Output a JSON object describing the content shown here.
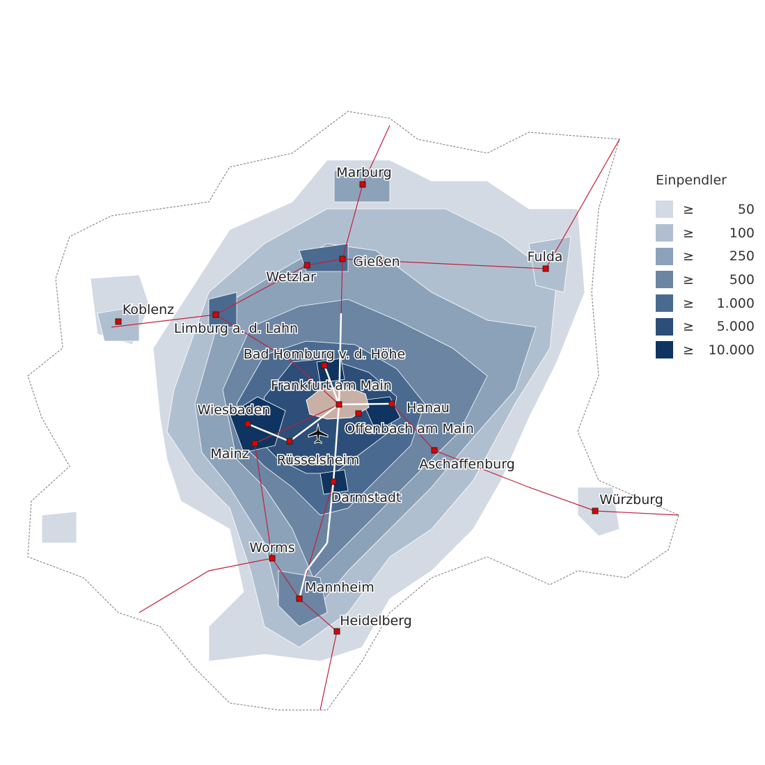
{
  "legend": {
    "title": "Einpendler",
    "symbol": "≥",
    "classes": [
      {
        "label": "50",
        "color": "#d3dae3"
      },
      {
        "label": "100",
        "color": "#b0bfd0"
      },
      {
        "label": "250",
        "color": "#8ca2b9"
      },
      {
        "label": "500",
        "color": "#6b85a3"
      },
      {
        "label": "1.000",
        "color": "#4b6a90"
      },
      {
        "label": "5.000",
        "color": "#2c4e78"
      },
      {
        "label": "10.000",
        "color": "#0f3461"
      }
    ]
  },
  "colors": {
    "center_city": "#c8b0a6",
    "railway": "#c0203a",
    "city_marker": "#e00000",
    "outline": "#9a9a9a"
  },
  "cities": [
    {
      "name": "Marburg"
    },
    {
      "name": "Gießen"
    },
    {
      "name": "Wetzlar"
    },
    {
      "name": "Fulda"
    },
    {
      "name": "Koblenz"
    },
    {
      "name": "Limburg a. d. Lahn"
    },
    {
      "name": "Bad Homburg v. d. Höhe"
    },
    {
      "name": "Frankfurt am Main"
    },
    {
      "name": "Hanau"
    },
    {
      "name": "Offenbach am Main"
    },
    {
      "name": "Wiesbaden"
    },
    {
      "name": "Mainz"
    },
    {
      "name": "Rüsselsheim"
    },
    {
      "name": "Aschaffenburg"
    },
    {
      "name": "Darmstadt"
    },
    {
      "name": "Würzburg"
    },
    {
      "name": "Worms"
    },
    {
      "name": "Mannheim"
    },
    {
      "name": "Heidelberg"
    }
  ],
  "airport_icon": "airplane-icon"
}
